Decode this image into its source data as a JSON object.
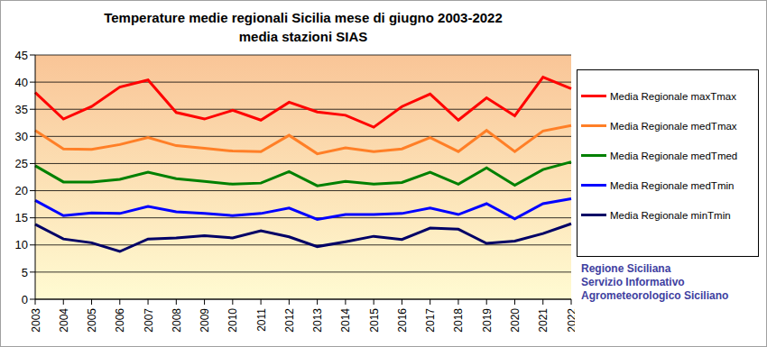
{
  "chart_data": {
    "type": "line",
    "title": "Temperature medie regionali Sicilia mese di giugno 2003-2022",
    "subtitle": "media stazioni SIAS",
    "categories": [
      "2003",
      "2004",
      "2005",
      "2006",
      "2007",
      "2008",
      "2009",
      "2010",
      "2011",
      "2012",
      "2013",
      "2014",
      "2015",
      "2016",
      "2017",
      "2018",
      "2019",
      "2020",
      "2021",
      "2022"
    ],
    "series": [
      {
        "name": "Media Regionale maxTmax",
        "color": "#ff0000",
        "values": [
          38.1,
          33.2,
          35.5,
          39.1,
          40.4,
          34.4,
          33.2,
          34.8,
          33.0,
          36.3,
          34.5,
          33.9,
          31.7,
          35.5,
          37.8,
          33.0,
          37.1,
          33.8,
          40.9,
          38.8
        ]
      },
      {
        "name": "Media Regionale medTmax",
        "color": "#ff7f27",
        "values": [
          31.1,
          27.7,
          27.6,
          28.5,
          29.8,
          28.3,
          27.8,
          27.3,
          27.2,
          30.2,
          26.8,
          27.9,
          27.2,
          27.7,
          29.8,
          27.2,
          31.1,
          27.2,
          31.0,
          32.0
        ]
      },
      {
        "name": "Media Regionale medTmed",
        "color": "#008000",
        "values": [
          24.6,
          21.6,
          21.6,
          22.1,
          23.4,
          22.2,
          21.7,
          21.2,
          21.4,
          23.5,
          20.9,
          21.7,
          21.2,
          21.5,
          23.4,
          21.2,
          24.2,
          21.0,
          23.9,
          25.3
        ]
      },
      {
        "name": "Media Regionale medTmin",
        "color": "#0000ff",
        "values": [
          18.2,
          15.4,
          15.9,
          15.8,
          17.1,
          16.1,
          15.8,
          15.4,
          15.8,
          16.8,
          14.7,
          15.6,
          15.6,
          15.8,
          16.8,
          15.6,
          17.6,
          14.8,
          17.6,
          18.5
        ]
      },
      {
        "name": "Media Regionale minTmin",
        "color": "#000066",
        "values": [
          13.8,
          11.1,
          10.4,
          8.8,
          11.1,
          11.3,
          11.7,
          11.3,
          12.6,
          11.5,
          9.7,
          10.6,
          11.6,
          11.0,
          13.1,
          12.9,
          10.3,
          10.7,
          12.1,
          13.9
        ]
      }
    ],
    "ylim": [
      0,
      45
    ],
    "yticks": [
      0,
      5,
      10,
      15,
      20,
      25,
      30,
      35,
      40,
      45
    ],
    "grid": true,
    "legend": "right",
    "annotations": [
      "Regione Siciliana",
      "Servizio Informativo",
      "Agrometeorologico Siciliano"
    ]
  }
}
